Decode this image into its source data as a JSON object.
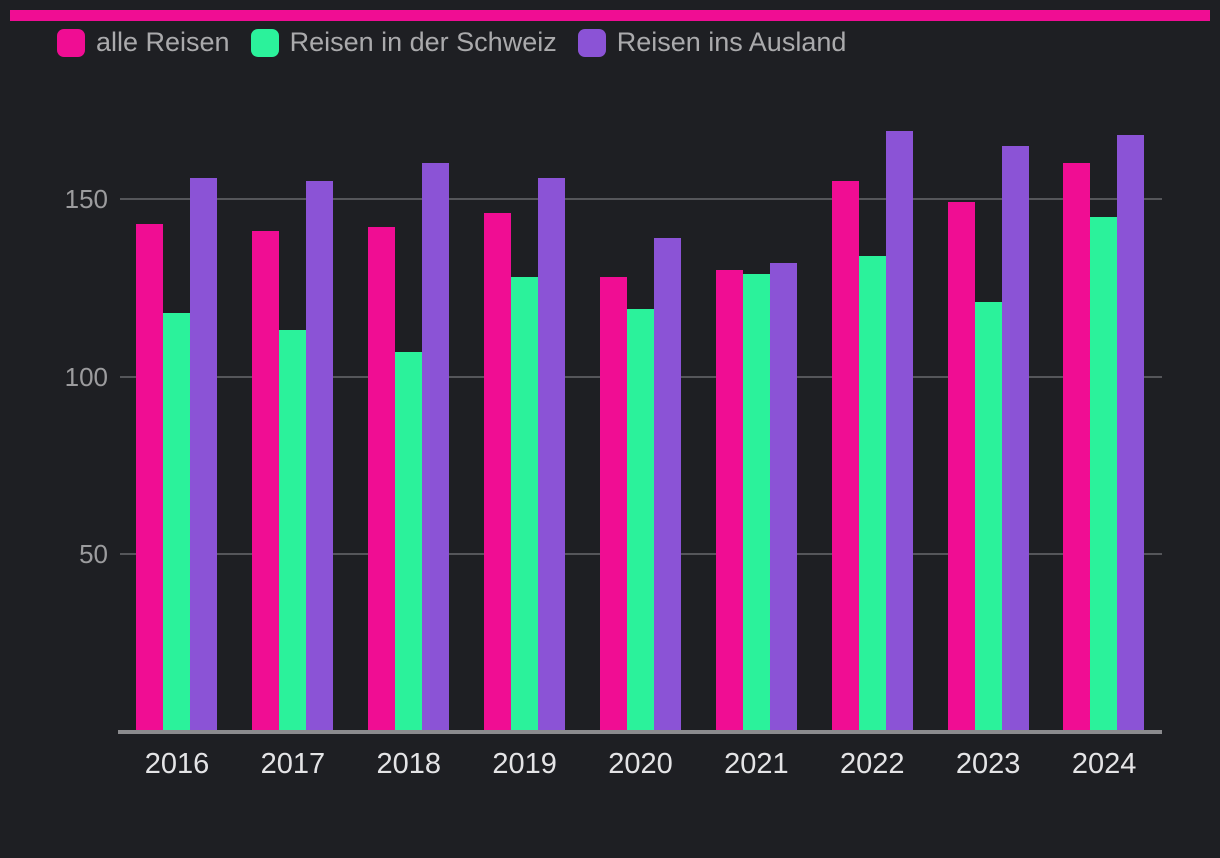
{
  "page": {
    "background": "#1e1f23",
    "accent_stripe_color": "#f00d93"
  },
  "legend": {
    "items": [
      {
        "label": "alle Reisen",
        "color": "#f00d93"
      },
      {
        "label": "Reisen in der Schweiz",
        "color": "#2bf29b"
      },
      {
        "label": "Reisen ins Ausland",
        "color": "#8b53d6"
      }
    ]
  },
  "chart_data": {
    "type": "bar",
    "categories": [
      "2016",
      "2017",
      "2018",
      "2019",
      "2020",
      "2021",
      "2022",
      "2023",
      "2024"
    ],
    "series": [
      {
        "name": "alle Reisen",
        "color": "#f00d93",
        "values": [
          143,
          141,
          142,
          146,
          128,
          130,
          155,
          149,
          160
        ]
      },
      {
        "name": "Reisen in der Schweiz",
        "color": "#2bf29b",
        "values": [
          118,
          113,
          107,
          128,
          119,
          129,
          134,
          121,
          145
        ]
      },
      {
        "name": "Reisen ins Ausland",
        "color": "#8b53d6",
        "values": [
          156,
          155,
          160,
          156,
          139,
          132,
          169,
          165,
          168
        ]
      }
    ],
    "title": "",
    "xlabel": "",
    "ylabel": "",
    "yticks": [
      50,
      100,
      150
    ],
    "ylim": [
      0,
      175
    ],
    "grid": true,
    "legend_position": "top",
    "background": "dark"
  }
}
